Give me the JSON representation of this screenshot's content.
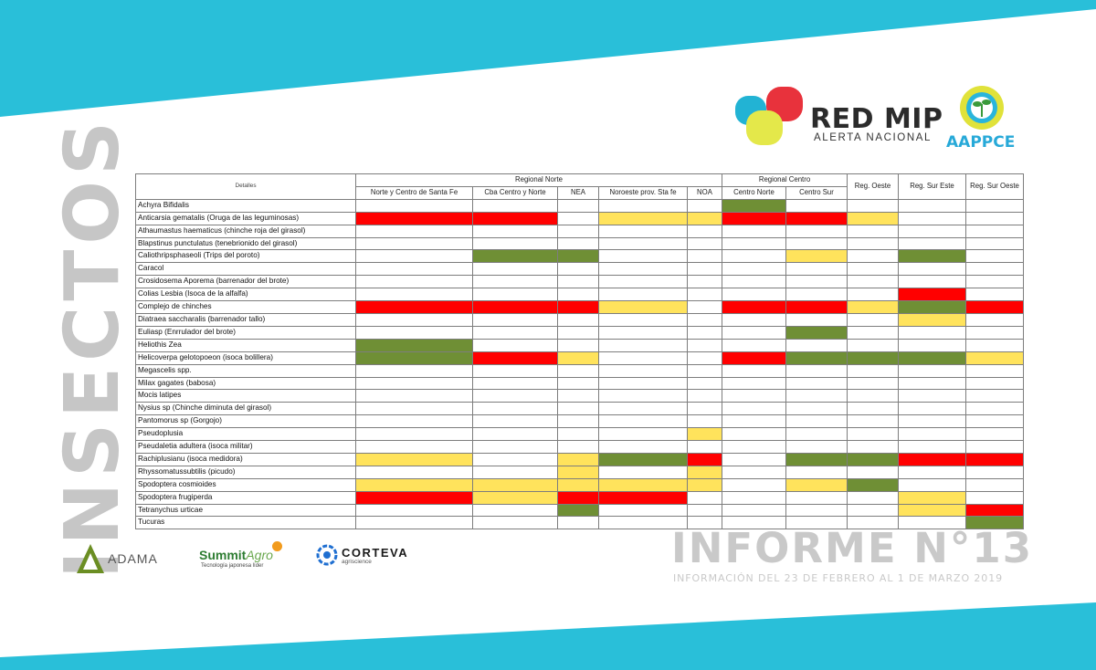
{
  "side_title": "INSECTOS",
  "brand": {
    "name": "RED MIP",
    "tagline": "ALERTA NACIONAL",
    "partner": "AAPPCE"
  },
  "colors": {
    "background_band": "#29bfd9",
    "red": "#ff0000",
    "yellow": "#ffe35c",
    "green": "#6f8f35",
    "white": "#ffffff"
  },
  "table": {
    "corner_label": "Detalles",
    "groups": [
      {
        "label": "Regional Norte",
        "span": 5
      },
      {
        "label": "Regional Centro",
        "span": 2
      }
    ],
    "columns": [
      "Norte y Centro de Santa Fe",
      "Cba Centro y Norte",
      "NEA",
      "Noroeste prov. Sta fe",
      "NOA",
      "Centro Norte",
      "Centro Sur",
      "Reg. Oeste",
      "Reg. Sur Este",
      "Reg. Sur Oeste"
    ],
    "rows": [
      {
        "name": "Achyra Bifidalis",
        "cells": [
          "w",
          "w",
          "w",
          "w",
          "w",
          "g",
          "w",
          "w",
          "w",
          "w"
        ]
      },
      {
        "name": "Anticarsia gematalis (Oruga de las leguminosas)",
        "cells": [
          "r",
          "r",
          "w",
          "y",
          "y",
          "r",
          "r",
          "y",
          "w",
          "w"
        ]
      },
      {
        "name": "Athaumastus haematicus (chinche roja del girasol)",
        "cells": [
          "w",
          "w",
          "w",
          "w",
          "w",
          "w",
          "w",
          "w",
          "w",
          "w"
        ]
      },
      {
        "name": "Blapstinus punctulatus (tenebrionido del girasol)",
        "cells": [
          "w",
          "w",
          "w",
          "w",
          "w",
          "w",
          "w",
          "w",
          "w",
          "w"
        ]
      },
      {
        "name": "Caliothripsphaseoli  (Trips del poroto)",
        "cells": [
          "w",
          "g",
          "g",
          "w",
          "w",
          "w",
          "y",
          "w",
          "g",
          "w"
        ]
      },
      {
        "name": "Caracol",
        "cells": [
          "w",
          "w",
          "w",
          "w",
          "w",
          "w",
          "w",
          "w",
          "w",
          "w"
        ]
      },
      {
        "name": "Crosidosema Aporema (barrenador del brote)",
        "cells": [
          "w",
          "w",
          "w",
          "w",
          "w",
          "w",
          "w",
          "w",
          "w",
          "w"
        ]
      },
      {
        "name": "Colias Lesbia (Isoca de la alfalfa)",
        "cells": [
          "w",
          "w",
          "w",
          "w",
          "w",
          "w",
          "w",
          "w",
          "r",
          "w"
        ]
      },
      {
        "name": "Complejo de chinches",
        "cells": [
          "r",
          "r",
          "r",
          "y",
          "w",
          "r",
          "r",
          "y",
          "g",
          "r"
        ]
      },
      {
        "name": "Diatraea saccharalis (barrenador tallo)",
        "cells": [
          "w",
          "w",
          "w",
          "w",
          "w",
          "w",
          "w",
          "w",
          "y",
          "w"
        ]
      },
      {
        "name": "Euliasp (Enrrulador del brote)",
        "cells": [
          "w",
          "w",
          "w",
          "w",
          "w",
          "w",
          "g",
          "w",
          "w",
          "w"
        ]
      },
      {
        "name": "Heliothis Zea",
        "cells": [
          "g",
          "w",
          "w",
          "w",
          "w",
          "w",
          "w",
          "w",
          "w",
          "w"
        ]
      },
      {
        "name": "Helicoverpa gelotopoeon (isoca bolillera)",
        "cells": [
          "g",
          "r",
          "y",
          "w",
          "w",
          "r",
          "g",
          "g",
          "g",
          "y"
        ]
      },
      {
        "name": "Megascelis spp.",
        "cells": [
          "w",
          "w",
          "w",
          "w",
          "w",
          "w",
          "w",
          "w",
          "w",
          "w"
        ]
      },
      {
        "name": "Milax gagates (babosa)",
        "cells": [
          "w",
          "w",
          "w",
          "w",
          "w",
          "w",
          "w",
          "w",
          "w",
          "w"
        ]
      },
      {
        "name": "Mocis latipes",
        "cells": [
          "w",
          "w",
          "w",
          "w",
          "w",
          "w",
          "w",
          "w",
          "w",
          "w"
        ]
      },
      {
        "name": "Nysius sp (Chinche diminuta del girasol)",
        "cells": [
          "w",
          "w",
          "w",
          "w",
          "w",
          "w",
          "w",
          "w",
          "w",
          "w"
        ]
      },
      {
        "name": "Pantomorus sp (Gorgojo)",
        "cells": [
          "w",
          "w",
          "w",
          "w",
          "w",
          "w",
          "w",
          "w",
          "w",
          "w"
        ]
      },
      {
        "name": "Pseudoplusia",
        "cells": [
          "w",
          "w",
          "w",
          "w",
          "y",
          "w",
          "w",
          "w",
          "w",
          "w"
        ]
      },
      {
        "name": "Pseudaletia adultera (isoca militar)",
        "cells": [
          "w",
          "w",
          "w",
          "w",
          "w",
          "w",
          "w",
          "w",
          "w",
          "w"
        ]
      },
      {
        "name": "Rachiplusianu  (isoca medidora)",
        "cells": [
          "y",
          "w",
          "y",
          "g",
          "r",
          "w",
          "g",
          "g",
          "r",
          "r"
        ]
      },
      {
        "name": "Rhyssomatussubtilis (picudo)",
        "cells": [
          "w",
          "w",
          "y",
          "w",
          "y",
          "w",
          "w",
          "w",
          "w",
          "w"
        ]
      },
      {
        "name": "Spodoptera cosmioides",
        "cells": [
          "y",
          "y",
          "y",
          "y",
          "y",
          "w",
          "y",
          "g",
          "w",
          "w"
        ]
      },
      {
        "name": "Spodoptera frugiperda",
        "cells": [
          "r",
          "y",
          "r",
          "r",
          "w",
          "w",
          "w",
          "w",
          "y",
          "w"
        ]
      },
      {
        "name": "Tetranychus urticae",
        "cells": [
          "w",
          "w",
          "g",
          "w",
          "w",
          "w",
          "w",
          "w",
          "y",
          "r"
        ]
      },
      {
        "name": "Tucuras",
        "cells": [
          "w",
          "w",
          "w",
          "w",
          "w",
          "w",
          "w",
          "w",
          "w",
          "g"
        ]
      }
    ]
  },
  "sponsors": {
    "adama": "ADAMA",
    "summit_main": "Summit",
    "summit_accent": "Agro",
    "summit_tagline": "Tecnología japonesa líder",
    "corteva": "CORTEVA",
    "corteva_sub": "agriscience"
  },
  "report": {
    "title": "INFORME N°13",
    "subtitle": "INFORMACIÓN DEL 23 DE FEBRERO AL 1 DE MARZO 2019"
  }
}
